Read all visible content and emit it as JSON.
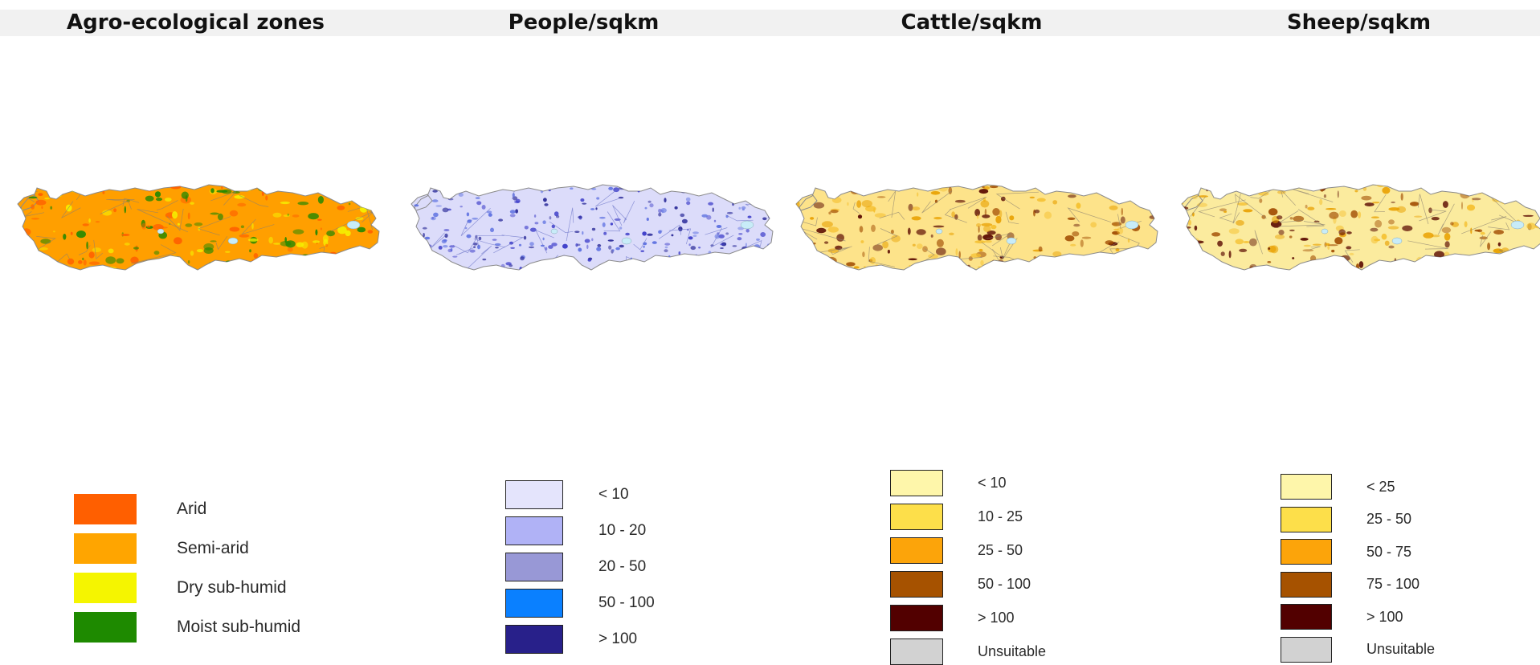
{
  "panels": [
    {
      "id": "aez",
      "title": "Agro-ecological zones",
      "map_base": "#ff9f00",
      "map_accents": [
        "#228800",
        "#ff5f00",
        "#f5f000"
      ],
      "legend": [
        {
          "label": "Arid",
          "color": "#ff5f00"
        },
        {
          "label": "Semi-arid",
          "color": "#ffa500"
        },
        {
          "label": "Dry sub-humid",
          "color": "#f5f500"
        },
        {
          "label": "Moist sub-humid",
          "color": "#1e8a00"
        }
      ]
    },
    {
      "id": "people",
      "title": "People/sqkm",
      "map_base": "#dcdcfa",
      "map_accents": [
        "#3a3ac8",
        "#5a6ee0",
        "#2a2a98"
      ],
      "legend": [
        {
          "label": "< 10",
          "color": "#e4e4fc"
        },
        {
          "label": "10 - 20",
          "color": "#b0b2f6"
        },
        {
          "label": "20 - 50",
          "color": "#9898d6"
        },
        {
          "label": "50 - 100",
          "color": "#0a80ff"
        },
        {
          "label": "> 100",
          "color": "#28208a"
        }
      ]
    },
    {
      "id": "cattle",
      "title": "Cattle/sqkm",
      "map_base": "#fde38a",
      "map_accents": [
        "#f5c030",
        "#e8a000",
        "#a04a00",
        "#5a0a00"
      ],
      "legend": [
        {
          "label": "< 10",
          "color": "#fef6aa"
        },
        {
          "label": "10 - 25",
          "color": "#fddf4a"
        },
        {
          "label": "25 - 50",
          "color": "#fca40a"
        },
        {
          "label": "50 - 100",
          "color": "#a65200"
        },
        {
          "label": "> 100",
          "color": "#520000"
        },
        {
          "label": "Unsuitable",
          "color": "#d2d2d2"
        }
      ]
    },
    {
      "id": "sheep",
      "title": "Sheep/sqkm",
      "map_base": "#fbeb9e",
      "map_accents": [
        "#f5c030",
        "#e8a000",
        "#a04a00",
        "#5a0a00"
      ],
      "legend": [
        {
          "label": "< 25",
          "color": "#fef6aa"
        },
        {
          "label": "25 - 50",
          "color": "#fddf4a"
        },
        {
          "label": "50 - 75",
          "color": "#fca40a"
        },
        {
          "label": "75 - 100",
          "color": "#a65200"
        },
        {
          "label": "> 100",
          "color": "#520000"
        },
        {
          "label": "Unsuitable",
          "color": "#d2d2d2"
        }
      ]
    }
  ]
}
